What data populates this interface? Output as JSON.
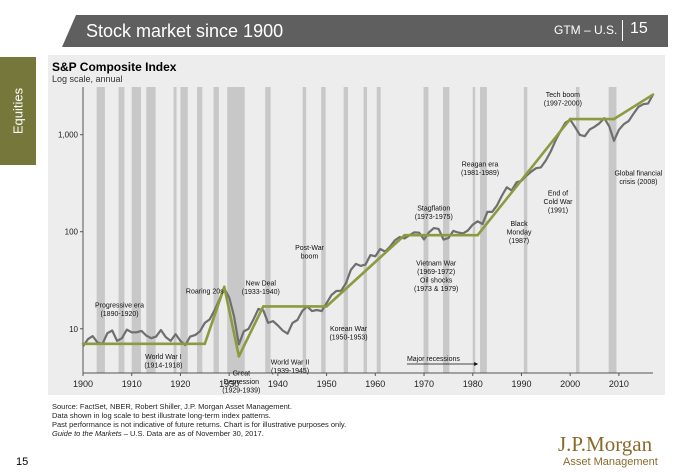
{
  "header": {
    "title": "Stock market since 1900",
    "gtm": "GTM – U.S.",
    "page": "15"
  },
  "sidebar": {
    "label": "Equities"
  },
  "chart_data": {
    "type": "line",
    "title": "S&P Composite Index",
    "subtitle": "Log scale, annual",
    "y_scale": "log",
    "xlim": [
      1900,
      2017
    ],
    "ylim": [
      3.5,
      3100
    ],
    "x_ticks": [
      1900,
      1910,
      1920,
      1930,
      1940,
      1950,
      1960,
      1970,
      1980,
      1990,
      2000,
      2010
    ],
    "y_ticks": [
      {
        "value": 10,
        "label": "10"
      },
      {
        "value": 100,
        "label": "100"
      },
      {
        "value": 1000,
        "label": "1,000"
      }
    ],
    "colors": {
      "index_line": "#6f6f6f",
      "trend_line": "#8b9b3e",
      "recession": "#c8c8c8",
      "panel": "#ededed"
    },
    "series": [
      {
        "values": [
          [
            1900,
            6.6
          ],
          [
            1901,
            7.8
          ],
          [
            1902,
            8.4
          ],
          [
            1903,
            7.2
          ],
          [
            1904,
            7.0
          ],
          [
            1905,
            9.0
          ],
          [
            1906,
            9.6
          ],
          [
            1907,
            7.5
          ],
          [
            1908,
            8.0
          ],
          [
            1909,
            9.8
          ],
          [
            1910,
            9.2
          ],
          [
            1911,
            9.2
          ],
          [
            1912,
            9.5
          ],
          [
            1913,
            8.5
          ],
          [
            1914,
            8.0
          ],
          [
            1915,
            8.3
          ],
          [
            1916,
            9.7
          ],
          [
            1917,
            8.2
          ],
          [
            1918,
            7.5
          ],
          [
            1919,
            8.8
          ],
          [
            1920,
            7.5
          ],
          [
            1921,
            6.8
          ],
          [
            1922,
            8.3
          ],
          [
            1923,
            8.6
          ],
          [
            1924,
            9.4
          ],
          [
            1925,
            11.5
          ],
          [
            1926,
            12.5
          ],
          [
            1927,
            15.5
          ],
          [
            1928,
            20
          ],
          [
            1929,
            26
          ],
          [
            1930,
            21
          ],
          [
            1931,
            13.5
          ],
          [
            1932,
            6.9
          ],
          [
            1933,
            9.4
          ],
          [
            1934,
            10
          ],
          [
            1935,
            12.5
          ],
          [
            1936,
            16
          ],
          [
            1937,
            15.5
          ],
          [
            1938,
            11.5
          ],
          [
            1939,
            12
          ],
          [
            1940,
            10.8
          ],
          [
            1941,
            9.6
          ],
          [
            1942,
            8.9
          ],
          [
            1943,
            11.5
          ],
          [
            1944,
            12.3
          ],
          [
            1945,
            15.2
          ],
          [
            1946,
            17
          ],
          [
            1947,
            15.2
          ],
          [
            1948,
            15.6
          ],
          [
            1949,
            15.2
          ],
          [
            1950,
            18.4
          ],
          [
            1951,
            22.3
          ],
          [
            1952,
            24.5
          ],
          [
            1953,
            24.7
          ],
          [
            1954,
            29.7
          ],
          [
            1955,
            40.5
          ],
          [
            1956,
            46.6
          ],
          [
            1957,
            44.4
          ],
          [
            1958,
            46
          ],
          [
            1959,
            57.4
          ],
          [
            1960,
            55.8
          ],
          [
            1961,
            66.3
          ],
          [
            1962,
            62.4
          ],
          [
            1963,
            69.9
          ],
          [
            1964,
            81.4
          ],
          [
            1965,
            88.2
          ],
          [
            1966,
            85.3
          ],
          [
            1967,
            91.9
          ],
          [
            1968,
            98.7
          ],
          [
            1969,
            97.8
          ],
          [
            1970,
            83.2
          ],
          [
            1971,
            98.3
          ],
          [
            1972,
            109
          ],
          [
            1973,
            107
          ],
          [
            1974,
            82.9
          ],
          [
            1975,
            86
          ],
          [
            1976,
            102
          ],
          [
            1977,
            98.2
          ],
          [
            1978,
            96
          ],
          [
            1979,
            103
          ],
          [
            1980,
            118
          ],
          [
            1981,
            128
          ],
          [
            1982,
            120
          ],
          [
            1983,
            160
          ],
          [
            1984,
            160
          ],
          [
            1985,
            187
          ],
          [
            1986,
            236
          ],
          [
            1987,
            287
          ],
          [
            1988,
            266
          ],
          [
            1989,
            323
          ],
          [
            1990,
            335
          ],
          [
            1991,
            376
          ],
          [
            1992,
            415
          ],
          [
            1993,
            451
          ],
          [
            1994,
            460
          ],
          [
            1995,
            542
          ],
          [
            1996,
            671
          ],
          [
            1997,
            873
          ],
          [
            1998,
            1085
          ],
          [
            1999,
            1327
          ],
          [
            2000,
            1427
          ],
          [
            2001,
            1194
          ],
          [
            2002,
            994
          ],
          [
            2003,
            965
          ],
          [
            2004,
            1131
          ],
          [
            2005,
            1207
          ],
          [
            2006,
            1311
          ],
          [
            2007,
            1477
          ],
          [
            2008,
            1220
          ],
          [
            2009,
            865
          ],
          [
            2010,
            1123
          ],
          [
            2011,
            1282
          ],
          [
            2012,
            1380
          ],
          [
            2013,
            1643
          ],
          [
            2014,
            1931
          ],
          [
            2015,
            2061
          ],
          [
            2016,
            2095
          ],
          [
            2017,
            2590
          ]
        ]
      }
    ],
    "trend_segments": [
      [
        [
          1900,
          7
        ],
        [
          1925,
          7
        ]
      ],
      [
        [
          1925,
          7
        ],
        [
          1929,
          27
        ]
      ],
      [
        [
          1929,
          27
        ],
        [
          1932,
          5.2
        ]
      ],
      [
        [
          1932,
          5.2
        ],
        [
          1937,
          17
        ]
      ],
      [
        [
          1937,
          17
        ],
        [
          1950,
          17
        ]
      ],
      [
        [
          1950,
          17
        ],
        [
          1966,
          92
        ]
      ],
      [
        [
          1966,
          92
        ],
        [
          1981,
          92
        ]
      ],
      [
        [
          1981,
          92
        ],
        [
          2000,
          1450
        ]
      ],
      [
        [
          2000,
          1450
        ],
        [
          2009,
          1450
        ]
      ],
      [
        [
          2009,
          1450
        ],
        [
          2017,
          2590
        ]
      ]
    ],
    "recessions": [
      [
        1902.8,
        1904.5
      ],
      [
        1907.3,
        1908.5
      ],
      [
        1910,
        1911.9
      ],
      [
        1913,
        1914.9
      ],
      [
        1918.6,
        1919.2
      ],
      [
        1920,
        1921.5
      ],
      [
        1923.4,
        1924.5
      ],
      [
        1926.8,
        1927.9
      ],
      [
        1929.6,
        1933.2
      ],
      [
        1937.4,
        1938.5
      ],
      [
        1945.1,
        1945.8
      ],
      [
        1948.9,
        1949.8
      ],
      [
        1953.5,
        1954.4
      ],
      [
        1957.6,
        1958.3
      ],
      [
        1960.3,
        1961.1
      ],
      [
        1969.9,
        1970.9
      ],
      [
        1973.9,
        1975.2
      ],
      [
        1980,
        1980.5
      ],
      [
        1981.5,
        1982.9
      ],
      [
        1990.5,
        1991.2
      ],
      [
        2001.2,
        2001.9
      ],
      [
        2007.9,
        2009.5
      ]
    ],
    "annotations": [
      {
        "lines": [
          "Progressive era",
          "(1890-1920)"
        ],
        "x": 1907.5,
        "y": 16.5
      },
      {
        "lines": [
          "Roaring 20s"
        ],
        "x": 1925,
        "y": 23
      },
      {
        "lines": [
          "World War I",
          "(1914-1918)"
        ],
        "x": 1916.5,
        "y": 4.9
      },
      {
        "lines": [
          "New Deal",
          "(1933-1940)"
        ],
        "x": 1936.5,
        "y": 28
      },
      {
        "lines": [
          "Great",
          "Depression",
          "(1929-1939)"
        ],
        "x": 1932.5,
        "y": 3.3
      },
      {
        "lines": [
          "World War II",
          "(1939-1945)"
        ],
        "x": 1942.5,
        "y": 4.3
      },
      {
        "lines": [
          "Post-War",
          "boom"
        ],
        "x": 1946.5,
        "y": 65
      },
      {
        "lines": [
          "Korean War",
          "(1950-1953)"
        ],
        "x": 1954.5,
        "y": 9.5
      },
      {
        "lines": [
          "Stagflation",
          "(1973-1975)"
        ],
        "x": 1972,
        "y": 165
      },
      {
        "lines": [
          "Vietnam War",
          "(1969-1972)",
          "Oil shocks",
          "(1973 & 1979)"
        ],
        "x": 1972.5,
        "y": 45
      },
      {
        "lines": [
          "Reagan era",
          "(1981-1989)"
        ],
        "x": 1981.5,
        "y": 470
      },
      {
        "lines": [
          "Black",
          "Monday",
          "(1987)"
        ],
        "x": 1989.5,
        "y": 115
      },
      {
        "lines": [
          "End of",
          "Cold War",
          "(1991)"
        ],
        "x": 1997.5,
        "y": 235
      },
      {
        "lines": [
          "Tech boom",
          "(1997-2000)"
        ],
        "x": 1998.5,
        "y": 2450
      },
      {
        "lines": [
          "Global financial",
          "crisis (2008)"
        ],
        "x": 2014,
        "y": 380
      }
    ],
    "recession_label": "Major recessions"
  },
  "footnotes": [
    "Source: FactSet, NBER, Robert Shiller, J.P. Morgan Asset Management.",
    "Data shown in log scale to best illustrate long-term index patterns.",
    "Past performance is not indicative of future returns. Chart is for illustrative purposes only."
  ],
  "footnote_guide": "Guide to the Markets",
  "footnote_guide_rest": " – U.S. Data are as of November 30, 2017.",
  "logo": {
    "name": "J.P.Morgan",
    "sub": "Asset Management"
  },
  "page_number": "15"
}
